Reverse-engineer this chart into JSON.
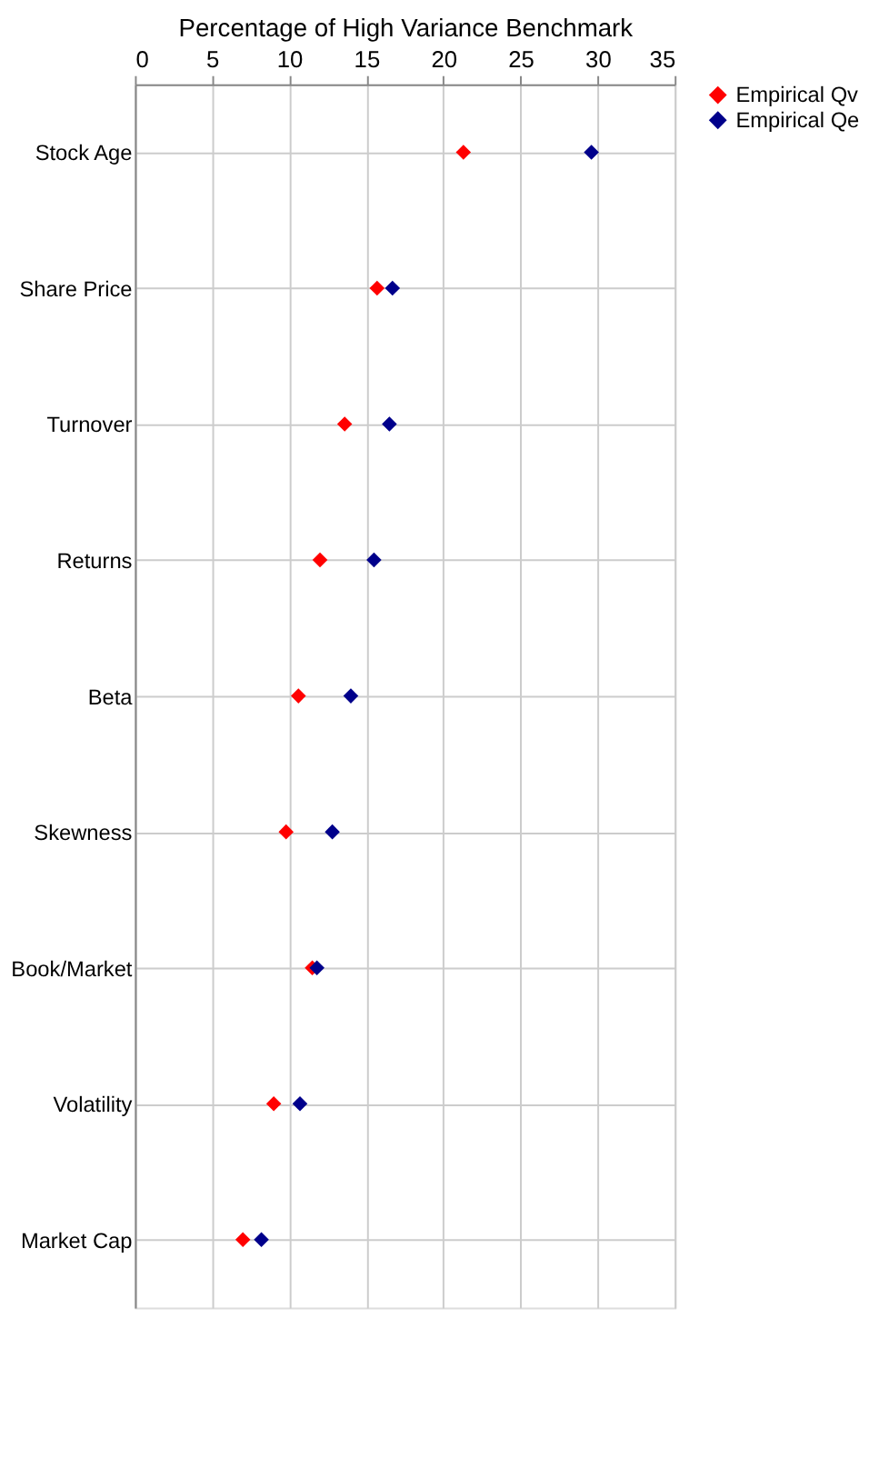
{
  "chart_data": {
    "type": "scatter",
    "xlabel": "Percentage of High Variance Benchmark",
    "orientation": "horizontal",
    "categories": [
      "Stock Age",
      "Share Price",
      "Turnover",
      "Returns",
      "Beta",
      "Skewness",
      "Book/Market",
      "Volatility",
      "Market Cap"
    ],
    "series": [
      {
        "name": "Empirical Qv",
        "color": "#ff0000",
        "values": [
          21.3,
          15.7,
          13.6,
          12.0,
          10.6,
          9.8,
          11.5,
          9.0,
          7.0
        ]
      },
      {
        "name": "Empirical Qe",
        "color": "#00008b",
        "values": [
          29.6,
          16.7,
          16.5,
          15.5,
          14.0,
          12.8,
          11.8,
          10.7,
          8.2
        ]
      }
    ],
    "xlim": [
      0,
      35
    ],
    "xticks": [
      0,
      5,
      10,
      15,
      20,
      25,
      30,
      35
    ],
    "grid": true,
    "legend": "right",
    "marker": "diamond"
  }
}
